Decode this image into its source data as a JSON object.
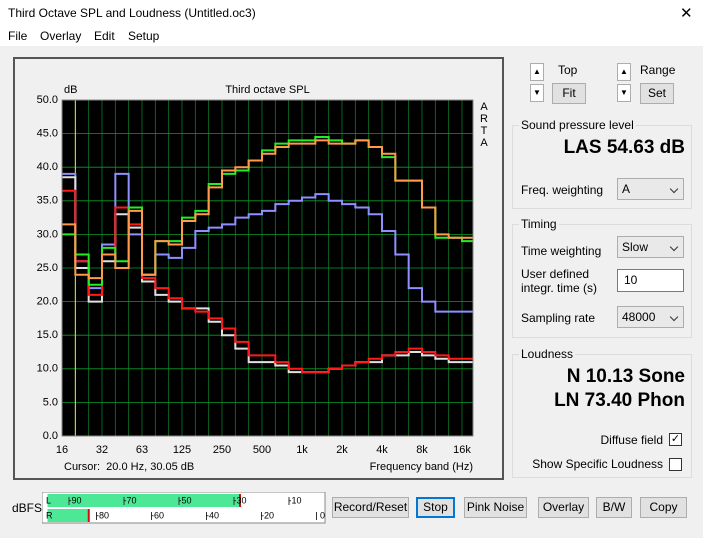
{
  "window": {
    "title": "Third Octave SPL and Loudness (Untitled.oc3)"
  },
  "menu": [
    "File",
    "Overlay",
    "Edit",
    "Setup"
  ],
  "chart_data": {
    "type": "line",
    "title": "Third octave SPL",
    "y_label": "dB",
    "x_label": "Frequency band (Hz)",
    "side_label": "ARTA",
    "cursor": "Cursor:  20.0 Hz, 30.05 dB",
    "step": true,
    "grid": true,
    "categories": [
      "16",
      null,
      null,
      "32",
      null,
      null,
      "63",
      null,
      null,
      "125",
      null,
      null,
      "250",
      null,
      null,
      "500",
      null,
      null,
      "1k",
      null,
      null,
      "2k",
      null,
      null,
      "4k",
      null,
      null,
      "8k",
      null,
      null,
      "16k"
    ],
    "ylim": [
      0,
      50
    ],
    "yticks": [
      {
        "value": 0,
        "label": "0.0"
      },
      {
        "value": 5,
        "label": "5.0"
      },
      {
        "value": 10,
        "label": "10.0"
      },
      {
        "value": 15,
        "label": "15.0"
      },
      {
        "value": 20,
        "label": "20.0"
      },
      {
        "value": 25,
        "label": "25.0"
      },
      {
        "value": 30,
        "label": "30.0"
      },
      {
        "value": 35,
        "label": "35.0"
      },
      {
        "value": 40,
        "label": "40.0"
      },
      {
        "value": 45,
        "label": "45.0"
      },
      {
        "value": 50,
        "label": "50.0"
      }
    ],
    "series": [
      {
        "color": "#8f8fff",
        "values": [
          39,
          26,
          22,
          28.5,
          39,
          30,
          24,
          27,
          26.5,
          28,
          30.5,
          31,
          31.5,
          32.5,
          33,
          33.5,
          34.5,
          35,
          35.5,
          36,
          35,
          34.5,
          34,
          33,
          30.5,
          27,
          22,
          20,
          18.5,
          18.5,
          18.5
        ]
      },
      {
        "color": "#e0e0e0",
        "values": [
          38.5,
          25,
          20,
          26,
          33,
          31,
          23,
          21,
          20,
          19,
          19,
          17,
          15,
          13,
          11,
          11,
          10.5,
          9.5,
          9.5,
          9.5,
          10,
          10.5,
          11,
          11,
          12,
          12,
          12.5,
          12,
          11.5,
          11,
          11
        ]
      },
      {
        "color": "#ff1a1a",
        "values": [
          36.5,
          26,
          21,
          27,
          34,
          31.5,
          23.5,
          22,
          20.5,
          19,
          18.5,
          17.5,
          16,
          14,
          12,
          12,
          11,
          10,
          9.5,
          9.5,
          10,
          10.5,
          11,
          11.5,
          12,
          12.5,
          13,
          12.5,
          12,
          11.5,
          11.5
        ]
      },
      {
        "color": "#22ee22",
        "values": [
          30,
          27,
          22.5,
          28,
          26,
          34,
          24,
          29,
          29,
          32.5,
          33.5,
          37.5,
          39,
          39.5,
          41,
          42.5,
          43.5,
          44,
          44,
          44.5,
          44,
          43.5,
          44,
          43,
          41.5,
          38,
          38,
          34,
          29.5,
          29.5,
          29
        ]
      },
      {
        "color": "#ff9a4a",
        "values": [
          31.5,
          24,
          23.5,
          27,
          25,
          33.5,
          24,
          29,
          28.5,
          32,
          33,
          37,
          39.5,
          40,
          41,
          42,
          43,
          43.5,
          43.5,
          44,
          43.5,
          43.5,
          44,
          43,
          42,
          38,
          38,
          34,
          30,
          29.5,
          29.5
        ]
      }
    ]
  },
  "controls": {
    "top": {
      "label": "Top",
      "button": "Fit"
    },
    "range": {
      "label": "Range",
      "button": "Set"
    },
    "spl": {
      "group": "Sound pressure level",
      "reading": "LAS 54.63 dB",
      "weighting_label": "Freq. weighting",
      "weighting": "A"
    },
    "timing": {
      "group": "Timing",
      "time_weighting_label": "Time weighting",
      "time_weighting": "Slow",
      "integr_label": "User defined integr. time (s)",
      "integr_time": 10,
      "sampling_label": "Sampling rate",
      "sampling_rate": 48000
    },
    "loudness": {
      "group": "Loudness",
      "n": "N 10.13 Sone",
      "ln": "LN 73.40 Phon",
      "diffuse": "Diffuse field",
      "diffuse_checked": true,
      "specific": "Show Specific Loudness",
      "specific_checked": false
    }
  },
  "meters": {
    "label": "dBFS",
    "xlim": [
      -100,
      0
    ],
    "L": {
      "label": "L",
      "level": -30,
      "ticks": [
        -90,
        -70,
        -50,
        -30,
        -10
      ]
    },
    "R": {
      "label": "R",
      "level": -85,
      "ticks": [
        -80,
        -60,
        -40,
        -20,
        0
      ]
    }
  },
  "buttons": [
    "Record/Reset",
    "Stop",
    "Pink Noise",
    "Overlay",
    "B/W",
    "Copy"
  ]
}
